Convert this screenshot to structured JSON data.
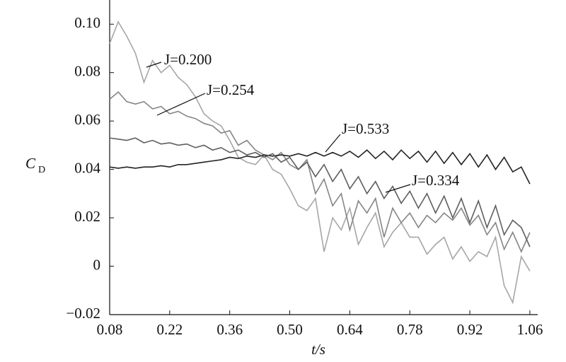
{
  "chart_data": {
    "type": "line",
    "xlabel": "t/s",
    "ylabel": "C",
    "ylabel_subscript": "D",
    "x": [
      0.08,
      0.1,
      0.12,
      0.14,
      0.16,
      0.18,
      0.2,
      0.22,
      0.24,
      0.26,
      0.28,
      0.3,
      0.32,
      0.34,
      0.36,
      0.38,
      0.4,
      0.42,
      0.44,
      0.46,
      0.48,
      0.5,
      0.52,
      0.54,
      0.56,
      0.58,
      0.6,
      0.62,
      0.64,
      0.66,
      0.68,
      0.7,
      0.72,
      0.74,
      0.76,
      0.78,
      0.8,
      0.82,
      0.84,
      0.86,
      0.88,
      0.9,
      0.92,
      0.94,
      0.96,
      0.98,
      1.0,
      1.02,
      1.04,
      1.06
    ],
    "series": [
      {
        "name": "J=0.200",
        "color": "#a6a6a6",
        "values": [
          0.092,
          0.101,
          0.095,
          0.088,
          0.076,
          0.085,
          0.08,
          0.083,
          0.078,
          0.075,
          0.07,
          0.063,
          0.06,
          0.058,
          0.052,
          0.045,
          0.043,
          0.042,
          0.046,
          0.04,
          0.038,
          0.032,
          0.025,
          0.023,
          0.028,
          0.006,
          0.02,
          0.015,
          0.024,
          0.009,
          0.016,
          0.022,
          0.008,
          0.014,
          0.018,
          0.012,
          0.012,
          0.005,
          0.009,
          0.012,
          0.003,
          0.008,
          0.002,
          0.006,
          0.004,
          0.012,
          -0.008,
          -0.015,
          0.004,
          -0.002
        ]
      },
      {
        "name": "J=0.254",
        "color": "#858585",
        "values": [
          0.069,
          0.072,
          0.068,
          0.067,
          0.068,
          0.065,
          0.066,
          0.063,
          0.064,
          0.062,
          0.061,
          0.059,
          0.058,
          0.055,
          0.056,
          0.05,
          0.052,
          0.048,
          0.046,
          0.044,
          0.047,
          0.042,
          0.04,
          0.044,
          0.03,
          0.036,
          0.025,
          0.03,
          0.015,
          0.027,
          0.022,
          0.028,
          0.012,
          0.024,
          0.018,
          0.022,
          0.016,
          0.021,
          0.018,
          0.022,
          0.019,
          0.024,
          0.017,
          0.021,
          0.013,
          0.018,
          0.007,
          0.014,
          0.006,
          0.014
        ]
      },
      {
        "name": "J=0.533",
        "color": "#222222",
        "values": [
          0.041,
          0.0405,
          0.041,
          0.0405,
          0.041,
          0.041,
          0.0415,
          0.041,
          0.042,
          0.042,
          0.0425,
          0.043,
          0.0435,
          0.044,
          0.045,
          0.0445,
          0.0455,
          0.045,
          0.046,
          0.0455,
          0.046,
          0.0455,
          0.0465,
          0.0455,
          0.047,
          0.0455,
          0.047,
          0.0455,
          0.0475,
          0.045,
          0.048,
          0.0445,
          0.0475,
          0.044,
          0.048,
          0.0445,
          0.0475,
          0.043,
          0.0475,
          0.0425,
          0.047,
          0.042,
          0.0465,
          0.041,
          0.046,
          0.04,
          0.045,
          0.039,
          0.041,
          0.034
        ]
      },
      {
        "name": "J=0.334",
        "color": "#5e5e5e",
        "values": [
          0.053,
          0.0525,
          0.052,
          0.053,
          0.051,
          0.052,
          0.0505,
          0.051,
          0.05,
          0.0505,
          0.049,
          0.05,
          0.048,
          0.049,
          0.047,
          0.048,
          0.046,
          0.047,
          0.045,
          0.0465,
          0.043,
          0.045,
          0.04,
          0.043,
          0.037,
          0.042,
          0.035,
          0.04,
          0.032,
          0.037,
          0.03,
          0.035,
          0.028,
          0.033,
          0.026,
          0.031,
          0.024,
          0.03,
          0.022,
          0.029,
          0.02,
          0.028,
          0.018,
          0.027,
          0.016,
          0.025,
          0.013,
          0.019,
          0.016,
          0.008
        ]
      }
    ],
    "xlim": [
      0.08,
      1.07
    ],
    "xticks": [
      0.08,
      0.22,
      0.36,
      {
        "value": 0.5,
        "label": "0.50"
      },
      0.64,
      0.78,
      0.92,
      1.06
    ],
    "ylim": [
      -0.02,
      0.11
    ],
    "yticks": [
      {
        "value": -0.02,
        "label": "−0.02"
      },
      0,
      0.02,
      0.04,
      0.06,
      0.08,
      {
        "value": 0.1,
        "label": "0.10"
      }
    ],
    "grid": false
  }
}
